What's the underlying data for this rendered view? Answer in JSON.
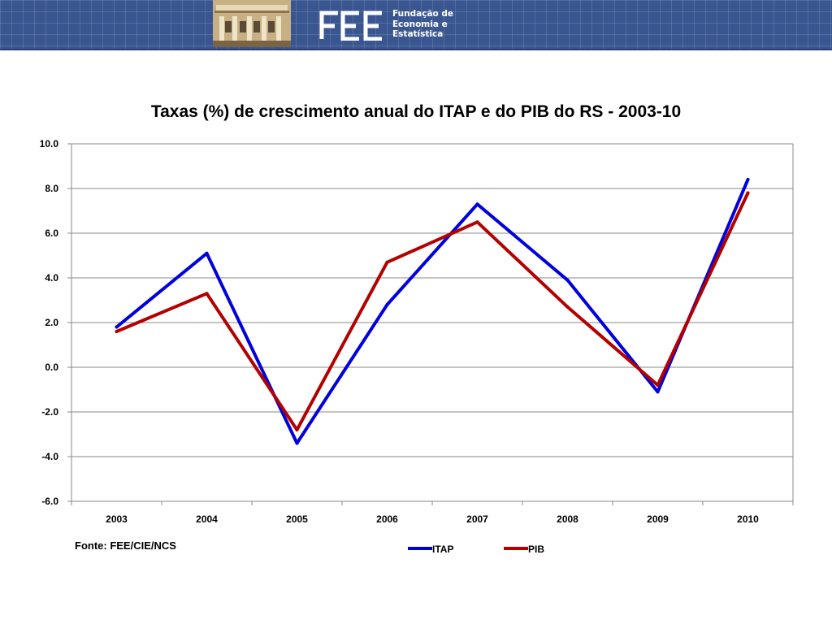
{
  "header": {
    "org_line1": "Fundação de",
    "org_line2": "Economia e",
    "org_line3": "Estatística",
    "banner_color": "#3a5690"
  },
  "chart_data": {
    "type": "line",
    "title": "Taxas (%) de crescimento anual do ITAP e do PIB do RS - 2003-10",
    "xlabel": "",
    "ylabel": "",
    "categories": [
      "2003",
      "2004",
      "2005",
      "2006",
      "2007",
      "2008",
      "2009",
      "2010"
    ],
    "ylim": [
      -6.0,
      10.0
    ],
    "yticks": [
      "10.0",
      "8.0",
      "6.0",
      "4.0",
      "2.0",
      "0.0",
      "-2.0",
      "-4.0",
      "-6.0"
    ],
    "grid": true,
    "legend_position": "bottom",
    "series": [
      {
        "name": "ITAP",
        "color": "#0000dd",
        "values": [
          1.8,
          5.1,
          -3.4,
          2.8,
          7.3,
          3.9,
          -1.1,
          8.4
        ]
      },
      {
        "name": "PIB",
        "color": "#b30000",
        "values": [
          1.6,
          3.3,
          -2.8,
          4.7,
          6.5,
          2.7,
          -0.8,
          7.8
        ]
      }
    ]
  },
  "source_note": "Fonte: FEE/CIE/NCS"
}
